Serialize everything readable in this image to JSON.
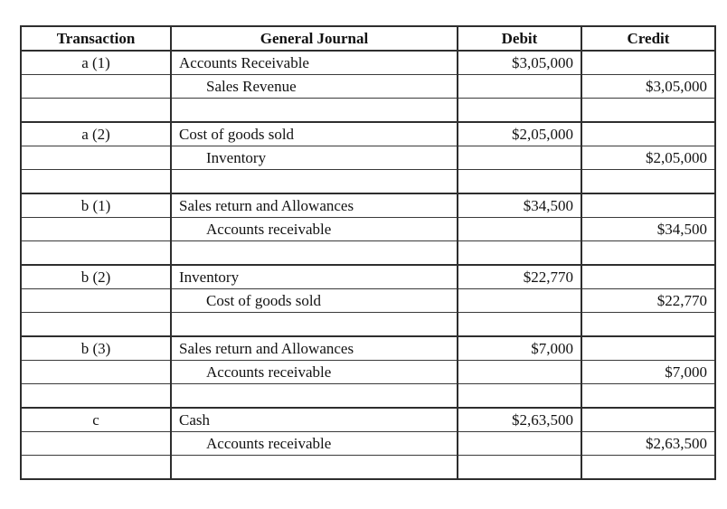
{
  "table": {
    "headers": [
      "Transaction",
      "General Journal",
      "Debit",
      "Credit"
    ],
    "rows": [
      {
        "transaction": "a (1)",
        "account": "Accounts Receivable",
        "debit": "$3,05,000",
        "credit": "",
        "indent": false,
        "group_start": true
      },
      {
        "transaction": "",
        "account": "Sales Revenue",
        "debit": "",
        "credit": "$3,05,000",
        "indent": true,
        "group_start": false
      },
      {
        "blank": true
      },
      {
        "transaction": "a (2)",
        "account": "Cost of goods sold",
        "debit": "$2,05,000",
        "credit": "",
        "indent": false,
        "group_start": true
      },
      {
        "transaction": "",
        "account": "Inventory",
        "debit": "",
        "credit": "$2,05,000",
        "indent": true,
        "group_start": false
      },
      {
        "blank": true
      },
      {
        "transaction": "b (1)",
        "account": "Sales return and Allowances",
        "debit": "$34,500",
        "credit": "",
        "indent": false,
        "group_start": true
      },
      {
        "transaction": "",
        "account": "Accounts receivable",
        "debit": "",
        "credit": "$34,500",
        "indent": true,
        "group_start": false
      },
      {
        "blank": true
      },
      {
        "transaction": "b (2)",
        "account": "Inventory",
        "debit": "$22,770",
        "credit": "",
        "indent": false,
        "group_start": true
      },
      {
        "transaction": "",
        "account": "Cost of goods sold",
        "debit": "",
        "credit": "$22,770",
        "indent": true,
        "group_start": false
      },
      {
        "blank": true
      },
      {
        "transaction": "b (3)",
        "account": "Sales return and Allowances",
        "debit": "$7,000",
        "credit": "",
        "indent": false,
        "group_start": true
      },
      {
        "transaction": "",
        "account": "Accounts receivable",
        "debit": "",
        "credit": "$7,000",
        "indent": true,
        "group_start": false
      },
      {
        "blank": true
      },
      {
        "transaction": "c",
        "account": "Cash",
        "debit": "$2,63,500",
        "credit": "",
        "indent": false,
        "group_start": true
      },
      {
        "transaction": "",
        "account": "Accounts receivable",
        "debit": "",
        "credit": "$2,63,500",
        "indent": true,
        "group_start": false
      },
      {
        "blank": true
      }
    ],
    "colors": {
      "border": "#2e2e2e",
      "text": "#121212",
      "background": "#ffffff"
    }
  }
}
